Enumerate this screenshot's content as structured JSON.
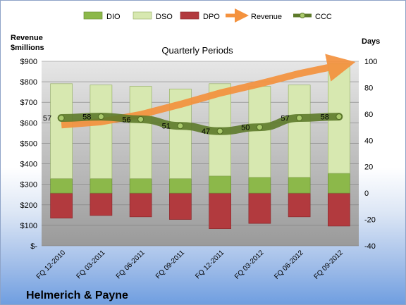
{
  "company": "Helmerich & Payne",
  "chart_data": {
    "type": "bar",
    "title": "Quarterly Periods",
    "left_axis_title": "Revenue $millions",
    "right_axis_title": "Days",
    "categories": [
      "FQ 12-2010",
      "FQ 03-2011",
      "FQ 06-2011",
      "FQ 09-2011",
      "FQ 12-2011",
      "FQ 03-2012",
      "FQ 06-2012",
      "FQ 09-2012"
    ],
    "left_ticks": [
      "$-",
      "$100",
      "$200",
      "$300",
      "$400",
      "$500",
      "$600",
      "$700",
      "$800",
      "$900"
    ],
    "right_ticks": [
      "-40",
      "-20",
      "0",
      "20",
      "40",
      "60",
      "80",
      "100"
    ],
    "ylim_left": [
      0,
      900
    ],
    "ylim_right": [
      -40,
      100
    ],
    "series": [
      {
        "name": "DIO",
        "axis": "right",
        "color": "#8cb84a",
        "values": [
          11,
          11,
          11,
          11,
          13,
          12,
          12,
          15
        ]
      },
      {
        "name": "DSO",
        "axis": "right",
        "color": "#d7e8b0",
        "values": [
          72,
          71,
          70,
          68,
          70,
          69,
          70,
          83
        ]
      },
      {
        "name": "DPO",
        "axis": "right",
        "color": "#b23a3e",
        "values": [
          -19,
          -17,
          -18,
          -20,
          -27,
          -23,
          -18,
          -25
        ]
      },
      {
        "name": "Revenue",
        "axis": "left",
        "color": "#f4923e",
        "values": [
          590,
          605,
          640,
          690,
          745,
          790,
          840,
          880
        ]
      },
      {
        "name": "CCC",
        "axis": "right",
        "color": "#5d7a2a",
        "values": [
          57,
          58,
          56,
          51,
          47,
          50,
          57,
          58
        ]
      }
    ],
    "ccc_labels": [
      "57",
      "58",
      "56",
      "51",
      "47",
      "50",
      "57",
      "58"
    ],
    "legend": [
      "DIO",
      "DSO",
      "DPO",
      "Revenue",
      "CCC"
    ],
    "legend_position": "top",
    "grid": true
  }
}
